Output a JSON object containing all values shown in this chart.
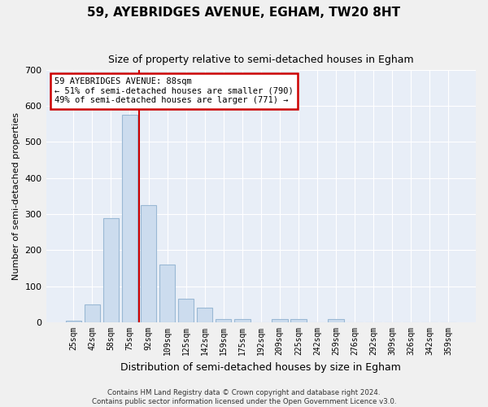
{
  "title": "59, AYEBRIDGES AVENUE, EGHAM, TW20 8HT",
  "subtitle": "Size of property relative to semi-detached houses in Egham",
  "xlabel": "Distribution of semi-detached houses by size in Egham",
  "ylabel": "Number of semi-detached properties",
  "categories": [
    "25sqm",
    "42sqm",
    "58sqm",
    "75sqm",
    "92sqm",
    "109sqm",
    "125sqm",
    "142sqm",
    "159sqm",
    "175sqm",
    "192sqm",
    "209sqm",
    "225sqm",
    "242sqm",
    "259sqm",
    "276sqm",
    "292sqm",
    "309sqm",
    "326sqm",
    "342sqm",
    "359sqm"
  ],
  "values": [
    5,
    50,
    290,
    575,
    325,
    160,
    65,
    40,
    10,
    10,
    0,
    10,
    10,
    0,
    10,
    0,
    0,
    0,
    0,
    0,
    0
  ],
  "bar_color": "#ccdcee",
  "bar_edge_color": "#9ab8d4",
  "property_line_color": "#cc0000",
  "property_line_index": 3.5,
  "annotation_line1": "59 AYEBRIDGES AVENUE: 88sqm",
  "annotation_line2": "← 51% of semi-detached houses are smaller (790)",
  "annotation_line3": "49% of semi-detached houses are larger (771) →",
  "annotation_box_color": "#cc0000",
  "ylim": [
    0,
    700
  ],
  "yticks": [
    0,
    100,
    200,
    300,
    400,
    500,
    600,
    700
  ],
  "bg_color": "#e8eef7",
  "fig_bg_color": "#f0f0f0",
  "grid_color": "#ffffff",
  "footer_line1": "Contains HM Land Registry data © Crown copyright and database right 2024.",
  "footer_line2": "Contains public sector information licensed under the Open Government Licence v3.0."
}
